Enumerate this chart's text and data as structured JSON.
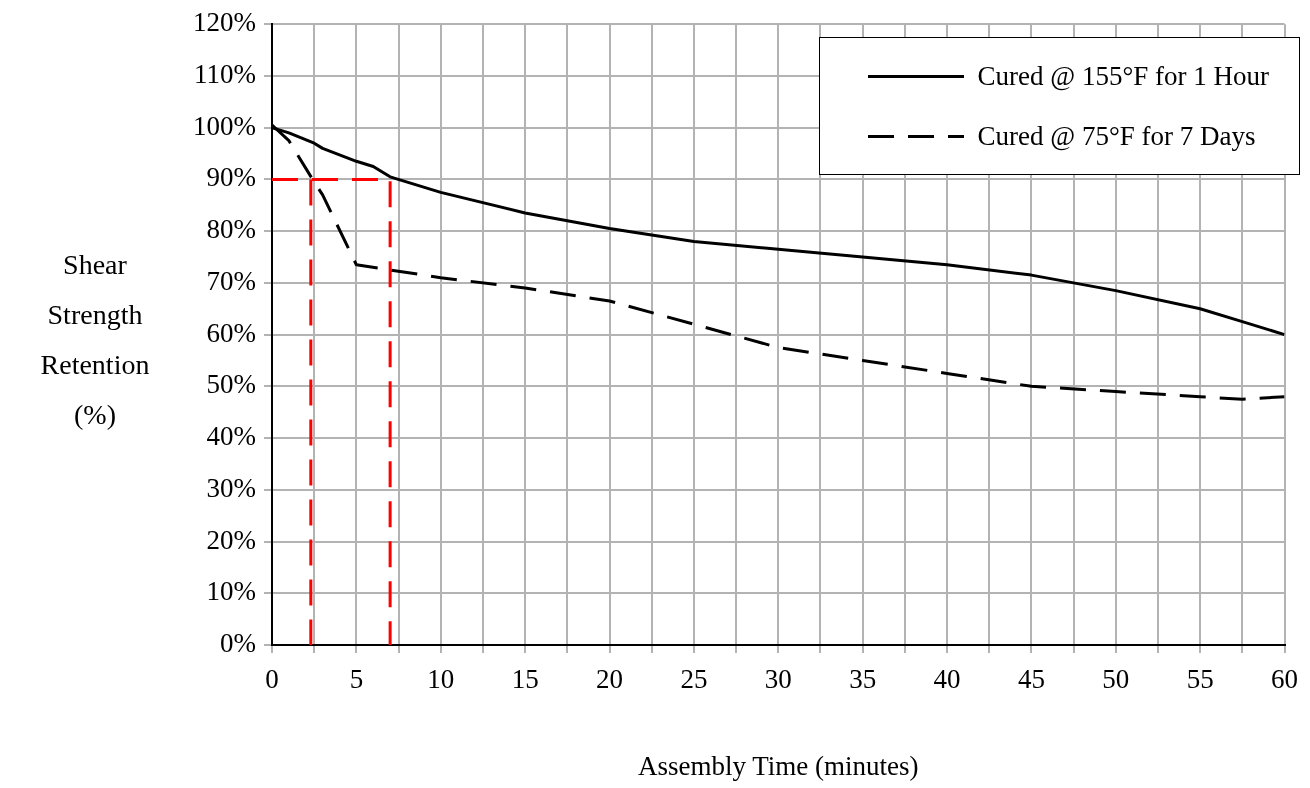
{
  "chart_data": {
    "type": "line",
    "xlabel": "Assembly Time (minutes)",
    "ylabel": "Shear Strength Retention (%)",
    "xlim": [
      0,
      60
    ],
    "ylim": [
      0,
      120
    ],
    "xticks": [
      0,
      {
        "value": 2.5,
        "label": null
      },
      5,
      {
        "value": 7.5,
        "label": null
      },
      10,
      {
        "value": 12.5,
        "label": null
      },
      15,
      {
        "value": 17.5,
        "label": null
      },
      20,
      {
        "value": 22.5,
        "label": null
      },
      25,
      {
        "value": 27.5,
        "label": null
      },
      30,
      {
        "value": 32.5,
        "label": null
      },
      35,
      {
        "value": 37.5,
        "label": null
      },
      40,
      {
        "value": 42.5,
        "label": null
      },
      45,
      {
        "value": 47.5,
        "label": null
      },
      50,
      {
        "value": 52.5,
        "label": null
      },
      55,
      {
        "value": 57.5,
        "label": null
      },
      60
    ],
    "yticks": [
      {
        "value": 0,
        "label": "0%"
      },
      {
        "value": 10,
        "label": "10%"
      },
      {
        "value": 20,
        "label": "20%"
      },
      {
        "value": 30,
        "label": "30%"
      },
      {
        "value": 40,
        "label": "40%"
      },
      {
        "value": 50,
        "label": "50%"
      },
      {
        "value": 60,
        "label": "60%"
      },
      {
        "value": 70,
        "label": "70%"
      },
      {
        "value": 80,
        "label": "80%"
      },
      {
        "value": 90,
        "label": "90%"
      },
      {
        "value": 100,
        "label": "100%"
      },
      {
        "value": 110,
        "label": "110%"
      },
      {
        "value": 120,
        "label": "120%"
      }
    ],
    "grid": true,
    "legend": "top right",
    "marker": "none",
    "series": [
      {
        "name": "Cured @ 155°F for 1 Hour",
        "color": "#000000",
        "line_style": "solid",
        "x": [
          0,
          1,
          2.5,
          3,
          5,
          6,
          7,
          10,
          15,
          20,
          25,
          30,
          35,
          40,
          45,
          50,
          55,
          57.5,
          60
        ],
        "values": [
          100,
          99,
          97,
          96,
          93.5,
          92.5,
          90.5,
          87.5,
          83.5,
          80.5,
          78,
          76.5,
          75,
          73.5,
          71.5,
          68.5,
          65,
          62.5,
          60
        ]
      },
      {
        "name": "Cured @ 75°F for 7 Days",
        "color": "#000000",
        "line_style": "dashed",
        "x": [
          0,
          1,
          2.5,
          3,
          5,
          7,
          10,
          15,
          20,
          25,
          30,
          35,
          40,
          45,
          50,
          55,
          57.5,
          60
        ],
        "values": [
          100.5,
          97.5,
          89.5,
          87,
          73.5,
          72.5,
          71,
          69,
          66.5,
          62,
          57.5,
          55,
          52.5,
          50,
          49,
          48,
          47.5,
          48
        ]
      },
      {
        "color": "#ff0000",
        "line_style": "dashed",
        "x": [
          0,
          7,
          7
        ],
        "values": [
          90,
          90,
          0
        ]
      },
      {
        "color": "#ff0000",
        "line_style": "dashed",
        "x": [
          2.3,
          2.3
        ],
        "values": [
          90,
          0
        ]
      }
    ]
  }
}
